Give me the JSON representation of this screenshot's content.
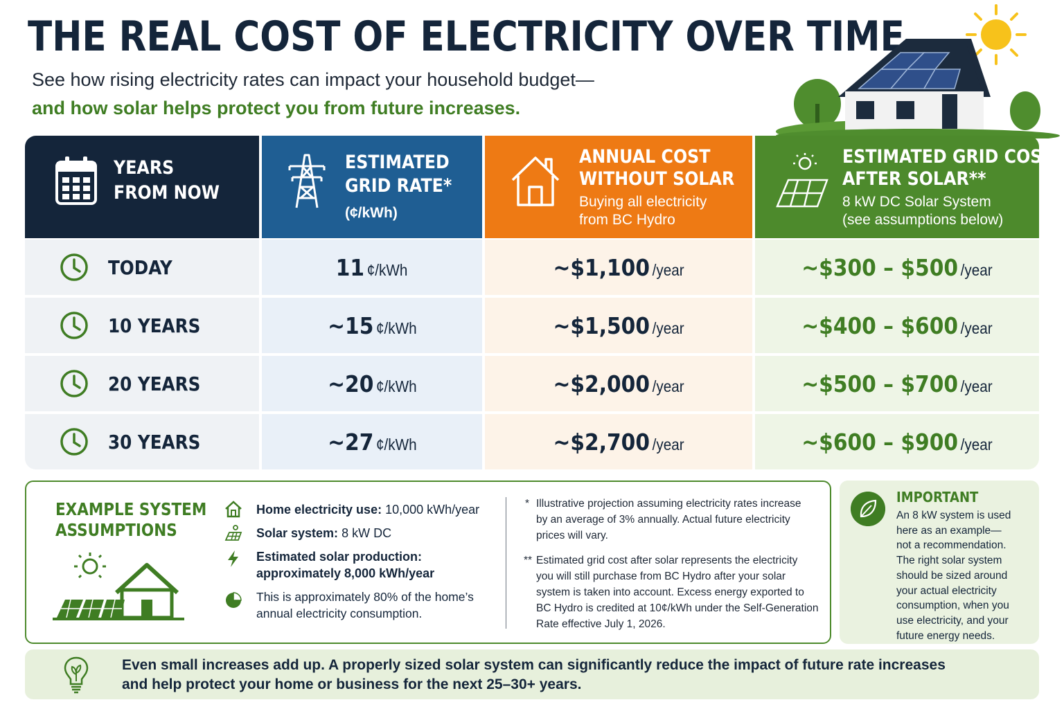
{
  "title": "THE REAL COST OF ELECTRICITY OVER TIME",
  "subtitle_line1": "See how rising electricity rates can impact your household budget—",
  "subtitle_line2": "and how solar helps protect you from future increases.",
  "colors": {
    "navy": "#14253a",
    "blue": "#1f5e93",
    "orange": "#ee7a14",
    "green": "#4d8a2c",
    "dark_green": "#3f7d23"
  },
  "table": {
    "headers": [
      {
        "icon": "calendar-icon",
        "title_line1": "YEARS",
        "title_line2": "FROM NOW"
      },
      {
        "icon": "power-tower-icon",
        "title_line1": "ESTIMATED",
        "title_line2": "GRID RATE*",
        "sub_line1": "(¢/kWh)"
      },
      {
        "icon": "house-icon",
        "title_line1": "ANNUAL COST",
        "title_line2": "WITHOUT SOLAR",
        "sub_line1": "Buying all electricity",
        "sub_line2": "from BC Hydro"
      },
      {
        "icon": "solar-panel-icon",
        "title_line1": "ESTIMATED GRID COST",
        "title_line2": "AFTER SOLAR**",
        "sub_line1": "8 kW DC Solar System",
        "sub_line2": "(see assumptions below)"
      }
    ],
    "rows": [
      {
        "period": "TODAY",
        "rate": "11",
        "rate_unit": "¢/kWh",
        "cost": "~$1,100",
        "cost_unit": "/year",
        "solar_cost": "~$300 – $500",
        "solar_unit": "/year"
      },
      {
        "period": "10 YEARS",
        "rate": "~15",
        "rate_unit": "¢/kWh",
        "cost": "~$1,500",
        "cost_unit": "/year",
        "solar_cost": "~$400 – $600",
        "solar_unit": "/year"
      },
      {
        "period": "20 YEARS",
        "rate": "~20",
        "rate_unit": "¢/kWh",
        "cost": "~$2,000",
        "cost_unit": "/year",
        "solar_cost": "~$500 – $700",
        "solar_unit": "/year"
      },
      {
        "period": "30 YEARS",
        "rate": "~27",
        "rate_unit": "¢/kWh",
        "cost": "~$2,700",
        "cost_unit": "/year",
        "solar_cost": "~$600 – $900",
        "solar_unit": "/year"
      }
    ]
  },
  "assumptions": {
    "title_line1": "EXAMPLE SYSTEM",
    "title_line2": "ASSUMPTIONS",
    "items": [
      {
        "icon": "house-outline-icon",
        "label": "Home electricity use:",
        "value": "10,000 kWh/year"
      },
      {
        "icon": "solar-panel-small-icon",
        "label": "Solar system:",
        "value": "8 kW DC"
      },
      {
        "icon": "lightning-icon",
        "label": "Estimated solar production:",
        "value": "approximately 8,000 kWh/year"
      },
      {
        "icon": "pie-chart-icon",
        "line1": "This is approximately 80% of the home’s",
        "line2": "annual electricity consumption."
      }
    ],
    "notes": [
      {
        "mark": "*",
        "lines": [
          "Illustrative projection assuming electricity rates increase",
          "by an average of 3% annually. Actual future electricity",
          "prices will vary."
        ]
      },
      {
        "mark": "**",
        "lines": [
          "Estimated grid cost after solar represents the electricity",
          "you will still purchase from BC Hydro after your solar",
          "system is taken into account. Excess energy exported to",
          "BC Hydro is credited at 10¢/kWh under the Self-Generation",
          "Rate effective July 1, 2026."
        ]
      }
    ]
  },
  "important": {
    "icon": "leaf-icon",
    "title": "IMPORTANT",
    "lines": [
      "An 8 kW system is used",
      "here as an example—",
      "not a recommendation.",
      "The right solar system",
      "should be sized around",
      "your actual electricity",
      "consumption, when you",
      "use electricity, and your",
      "future energy needs."
    ]
  },
  "footer": {
    "icon": "lightbulb-icon",
    "line1": "Even small increases add up. A properly sized solar system can significantly reduce the impact of future rate increases",
    "line2": "and help protect your home or business for the next 25–30+ years."
  }
}
